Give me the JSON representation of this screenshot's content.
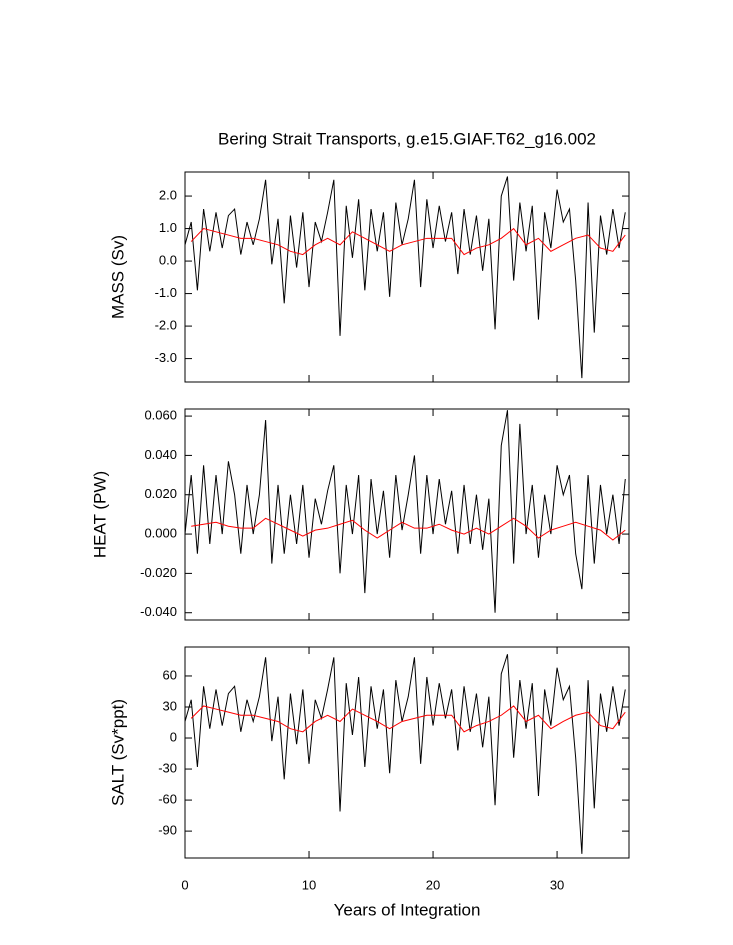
{
  "chart_data": [
    {
      "type": "line",
      "title": "Bering Strait Transports, g.e15.GIAF.T62_g16.002",
      "ylabel": "MASS (Sv)",
      "xlim": [
        0,
        35.8
      ],
      "xticks": [
        0,
        10,
        20,
        30
      ],
      "ylim": [
        -3.72,
        2.74
      ],
      "yticks": [
        {
          "value": -3,
          "label": "-3.0"
        },
        {
          "value": -2,
          "label": "-2.0"
        },
        {
          "value": -1,
          "label": "-1.0"
        },
        {
          "value": 0,
          "label": "0.0"
        },
        {
          "value": 1,
          "label": "1.0"
        },
        {
          "value": 2,
          "label": "2.0"
        }
      ],
      "series": [
        {
          "color": "#000000",
          "x": [
            0,
            0.5,
            1,
            1.5,
            2,
            2.5,
            3,
            3.5,
            4,
            4.5,
            5,
            5.5,
            6,
            6.5,
            7,
            7.5,
            8,
            8.5,
            9,
            9.5,
            10,
            10.5,
            11,
            11.5,
            12,
            12.5,
            13,
            13.5,
            14,
            14.5,
            15,
            15.5,
            16,
            16.5,
            17,
            17.5,
            18,
            18.5,
            19,
            19.5,
            20,
            20.5,
            21,
            21.5,
            22,
            22.5,
            23,
            23.5,
            24,
            24.5,
            25,
            25.5,
            26,
            26.5,
            27,
            27.5,
            28,
            28.5,
            29,
            29.5,
            30,
            30.5,
            31,
            31.5,
            32,
            32.5,
            33,
            33.5,
            34,
            34.5,
            35,
            35.5
          ],
          "values": [
            0.5,
            1.2,
            -0.9,
            1.6,
            0.3,
            1.5,
            0.4,
            1.4,
            1.6,
            0.2,
            1.2,
            0.5,
            1.3,
            2.5,
            -0.1,
            1.3,
            -1.3,
            1.4,
            -0.2,
            1.5,
            -0.8,
            1.2,
            0.6,
            1.5,
            2.5,
            -2.3,
            1.7,
            0.1,
            1.9,
            -0.9,
            1.6,
            0.3,
            1.5,
            -1.1,
            1.8,
            0.5,
            1.3,
            2.5,
            -0.8,
            1.9,
            0.4,
            1.7,
            0.6,
            1.5,
            -0.4,
            1.6,
            0.2,
            1.4,
            -0.3,
            1.3,
            -2.1,
            2.0,
            2.6,
            -0.6,
            1.8,
            0.3,
            1.7,
            -1.8,
            1.5,
            0.4,
            2.2,
            1.2,
            1.6,
            -0.6,
            -3.6,
            1.8,
            -2.2,
            1.4,
            0.2,
            1.6,
            0.4,
            1.5
          ]
        },
        {
          "color": "#ff0000",
          "x": [
            0.5,
            1.5,
            2.5,
            3.5,
            4.5,
            5.5,
            6.5,
            7.5,
            8.5,
            9.5,
            10.5,
            11.5,
            12.5,
            13.5,
            14.5,
            15.5,
            16.5,
            17.5,
            18.5,
            19.5,
            20.5,
            21.5,
            22.5,
            23.5,
            24.5,
            25.5,
            26.5,
            27.5,
            28.5,
            29.5,
            30.5,
            31.5,
            32.5,
            33.5,
            34.5,
            35.5
          ],
          "values": [
            0.6,
            1.0,
            0.9,
            0.8,
            0.7,
            0.7,
            0.6,
            0.5,
            0.3,
            0.2,
            0.5,
            0.7,
            0.5,
            0.9,
            0.7,
            0.5,
            0.3,
            0.5,
            0.6,
            0.7,
            0.7,
            0.7,
            0.2,
            0.4,
            0.5,
            0.7,
            1.0,
            0.5,
            0.7,
            0.3,
            0.5,
            0.7,
            0.8,
            0.4,
            0.3,
            0.8
          ]
        }
      ]
    },
    {
      "type": "line",
      "ylabel": "HEAT (PW)",
      "xlim": [
        0,
        35.8
      ],
      "xticks": [
        0,
        10,
        20,
        30
      ],
      "ylim": [
        -0.0437,
        0.0636
      ],
      "yticks": [
        {
          "value": -0.04,
          "label": "-0.040"
        },
        {
          "value": -0.02,
          "label": "-0.020"
        },
        {
          "value": 0,
          "label": "0.000"
        },
        {
          "value": 0.02,
          "label": "0.020"
        },
        {
          "value": 0.04,
          "label": "0.040"
        },
        {
          "value": 0.06,
          "label": "0.060"
        }
      ],
      "series": [
        {
          "color": "#000000",
          "x": [
            0,
            0.5,
            1,
            1.5,
            2,
            2.5,
            3,
            3.5,
            4,
            4.5,
            5,
            5.5,
            6,
            6.5,
            7,
            7.5,
            8,
            8.5,
            9,
            9.5,
            10,
            10.5,
            11,
            11.5,
            12,
            12.5,
            13,
            13.5,
            14,
            14.5,
            15,
            15.5,
            16,
            16.5,
            17,
            17.5,
            18,
            18.5,
            19,
            19.5,
            20,
            20.5,
            21,
            21.5,
            22,
            22.5,
            23,
            23.5,
            24,
            24.5,
            25,
            25.5,
            26,
            26.5,
            27,
            27.5,
            28,
            28.5,
            29,
            29.5,
            30,
            30.5,
            31,
            31.5,
            32,
            32.5,
            33,
            33.5,
            34,
            34.5,
            35,
            35.5
          ],
          "values": [
            0.0,
            0.03,
            -0.01,
            0.035,
            -0.005,
            0.03,
            0.0,
            0.037,
            0.02,
            -0.01,
            0.025,
            0.0,
            0.02,
            0.058,
            -0.015,
            0.025,
            -0.01,
            0.02,
            -0.005,
            0.025,
            -0.012,
            0.018,
            0.005,
            0.022,
            0.035,
            -0.02,
            0.025,
            0.0,
            0.03,
            -0.03,
            0.028,
            0.0,
            0.022,
            -0.012,
            0.03,
            0.002,
            0.02,
            0.04,
            -0.01,
            0.03,
            0.0,
            0.028,
            0.005,
            0.022,
            -0.01,
            0.025,
            -0.005,
            0.02,
            -0.008,
            0.018,
            -0.04,
            0.045,
            0.063,
            -0.015,
            0.056,
            0.0,
            0.025,
            -0.012,
            0.02,
            0.0,
            0.035,
            0.02,
            0.03,
            -0.01,
            -0.028,
            0.03,
            -0.015,
            0.025,
            0.0,
            0.02,
            -0.005,
            0.028
          ]
        },
        {
          "color": "#ff0000",
          "x": [
            0.5,
            1.5,
            2.5,
            3.5,
            4.5,
            5.5,
            6.5,
            7.5,
            8.5,
            9.5,
            10.5,
            11.5,
            12.5,
            13.5,
            14.5,
            15.5,
            16.5,
            17.5,
            18.5,
            19.5,
            20.5,
            21.5,
            22.5,
            23.5,
            24.5,
            25.5,
            26.5,
            27.5,
            28.5,
            29.5,
            30.5,
            31.5,
            32.5,
            33.5,
            34.5,
            35.5
          ],
          "values": [
            0.004,
            0.005,
            0.006,
            0.004,
            0.003,
            0.003,
            0.008,
            0.005,
            0.002,
            -0.001,
            0.002,
            0.003,
            0.005,
            0.007,
            0.002,
            -0.002,
            0.002,
            0.006,
            0.003,
            0.003,
            0.005,
            0.002,
            0.0,
            0.003,
            0.0,
            0.004,
            0.008,
            0.004,
            -0.002,
            0.002,
            0.004,
            0.006,
            0.004,
            0.002,
            -0.003,
            0.002
          ]
        }
      ]
    },
    {
      "type": "line",
      "ylabel": "SALT (Sv*ppt)",
      "xlabel": "Years of Integration",
      "xlim": [
        0,
        35.8
      ],
      "xticks": [
        0,
        10,
        20,
        30
      ],
      "ylim": [
        -116,
        88
      ],
      "yticks": [
        -90,
        -60,
        -30,
        0,
        30,
        60
      ],
      "series": [
        {
          "color": "#000000",
          "x": [
            0,
            0.5,
            1,
            1.5,
            2,
            2.5,
            3,
            3.5,
            4,
            4.5,
            5,
            5.5,
            6,
            6.5,
            7,
            7.5,
            8,
            8.5,
            9,
            9.5,
            10,
            10.5,
            11,
            11.5,
            12,
            12.5,
            13,
            13.5,
            14,
            14.5,
            15,
            15.5,
            16,
            16.5,
            17,
            17.5,
            18,
            18.5,
            19,
            19.5,
            20,
            20.5,
            21,
            21.5,
            22,
            22.5,
            23,
            23.5,
            24,
            24.5,
            25,
            25.5,
            26,
            26.5,
            27,
            27.5,
            28,
            28.5,
            29,
            29.5,
            30,
            30.5,
            31,
            31.5,
            32,
            32.5,
            33,
            33.5,
            34,
            34.5,
            35,
            35.5
          ],
          "values": [
            16,
            37,
            -28,
            50,
            9,
            47,
            12,
            43,
            50,
            6,
            37,
            16,
            40,
            78,
            -3,
            40,
            -40,
            43,
            -6,
            47,
            -25,
            37,
            19,
            47,
            78,
            -71,
            53,
            3,
            59,
            -28,
            50,
            9,
            47,
            -34,
            56,
            16,
            40,
            78,
            -25,
            59,
            12,
            53,
            19,
            47,
            -12,
            50,
            6,
            43,
            -9,
            40,
            -65,
            62,
            81,
            -19,
            56,
            9,
            53,
            -56,
            47,
            12,
            68,
            37,
            50,
            -19,
            -112,
            56,
            -68,
            43,
            6,
            50,
            12,
            47
          ]
        },
        {
          "color": "#ff0000",
          "x": [
            0.5,
            1.5,
            2.5,
            3.5,
            4.5,
            5.5,
            6.5,
            7.5,
            8.5,
            9.5,
            10.5,
            11.5,
            12.5,
            13.5,
            14.5,
            15.5,
            16.5,
            17.5,
            18.5,
            19.5,
            20.5,
            21.5,
            22.5,
            23.5,
            24.5,
            25.5,
            26.5,
            27.5,
            28.5,
            29.5,
            30.5,
            31.5,
            32.5,
            33.5,
            34.5,
            35.5
          ],
          "values": [
            19,
            31,
            28,
            25,
            22,
            22,
            19,
            16,
            9,
            6,
            16,
            22,
            16,
            28,
            22,
            16,
            9,
            16,
            19,
            22,
            22,
            22,
            6,
            12,
            16,
            22,
            31,
            16,
            22,
            9,
            16,
            22,
            25,
            12,
            9,
            25
          ]
        }
      ]
    }
  ]
}
